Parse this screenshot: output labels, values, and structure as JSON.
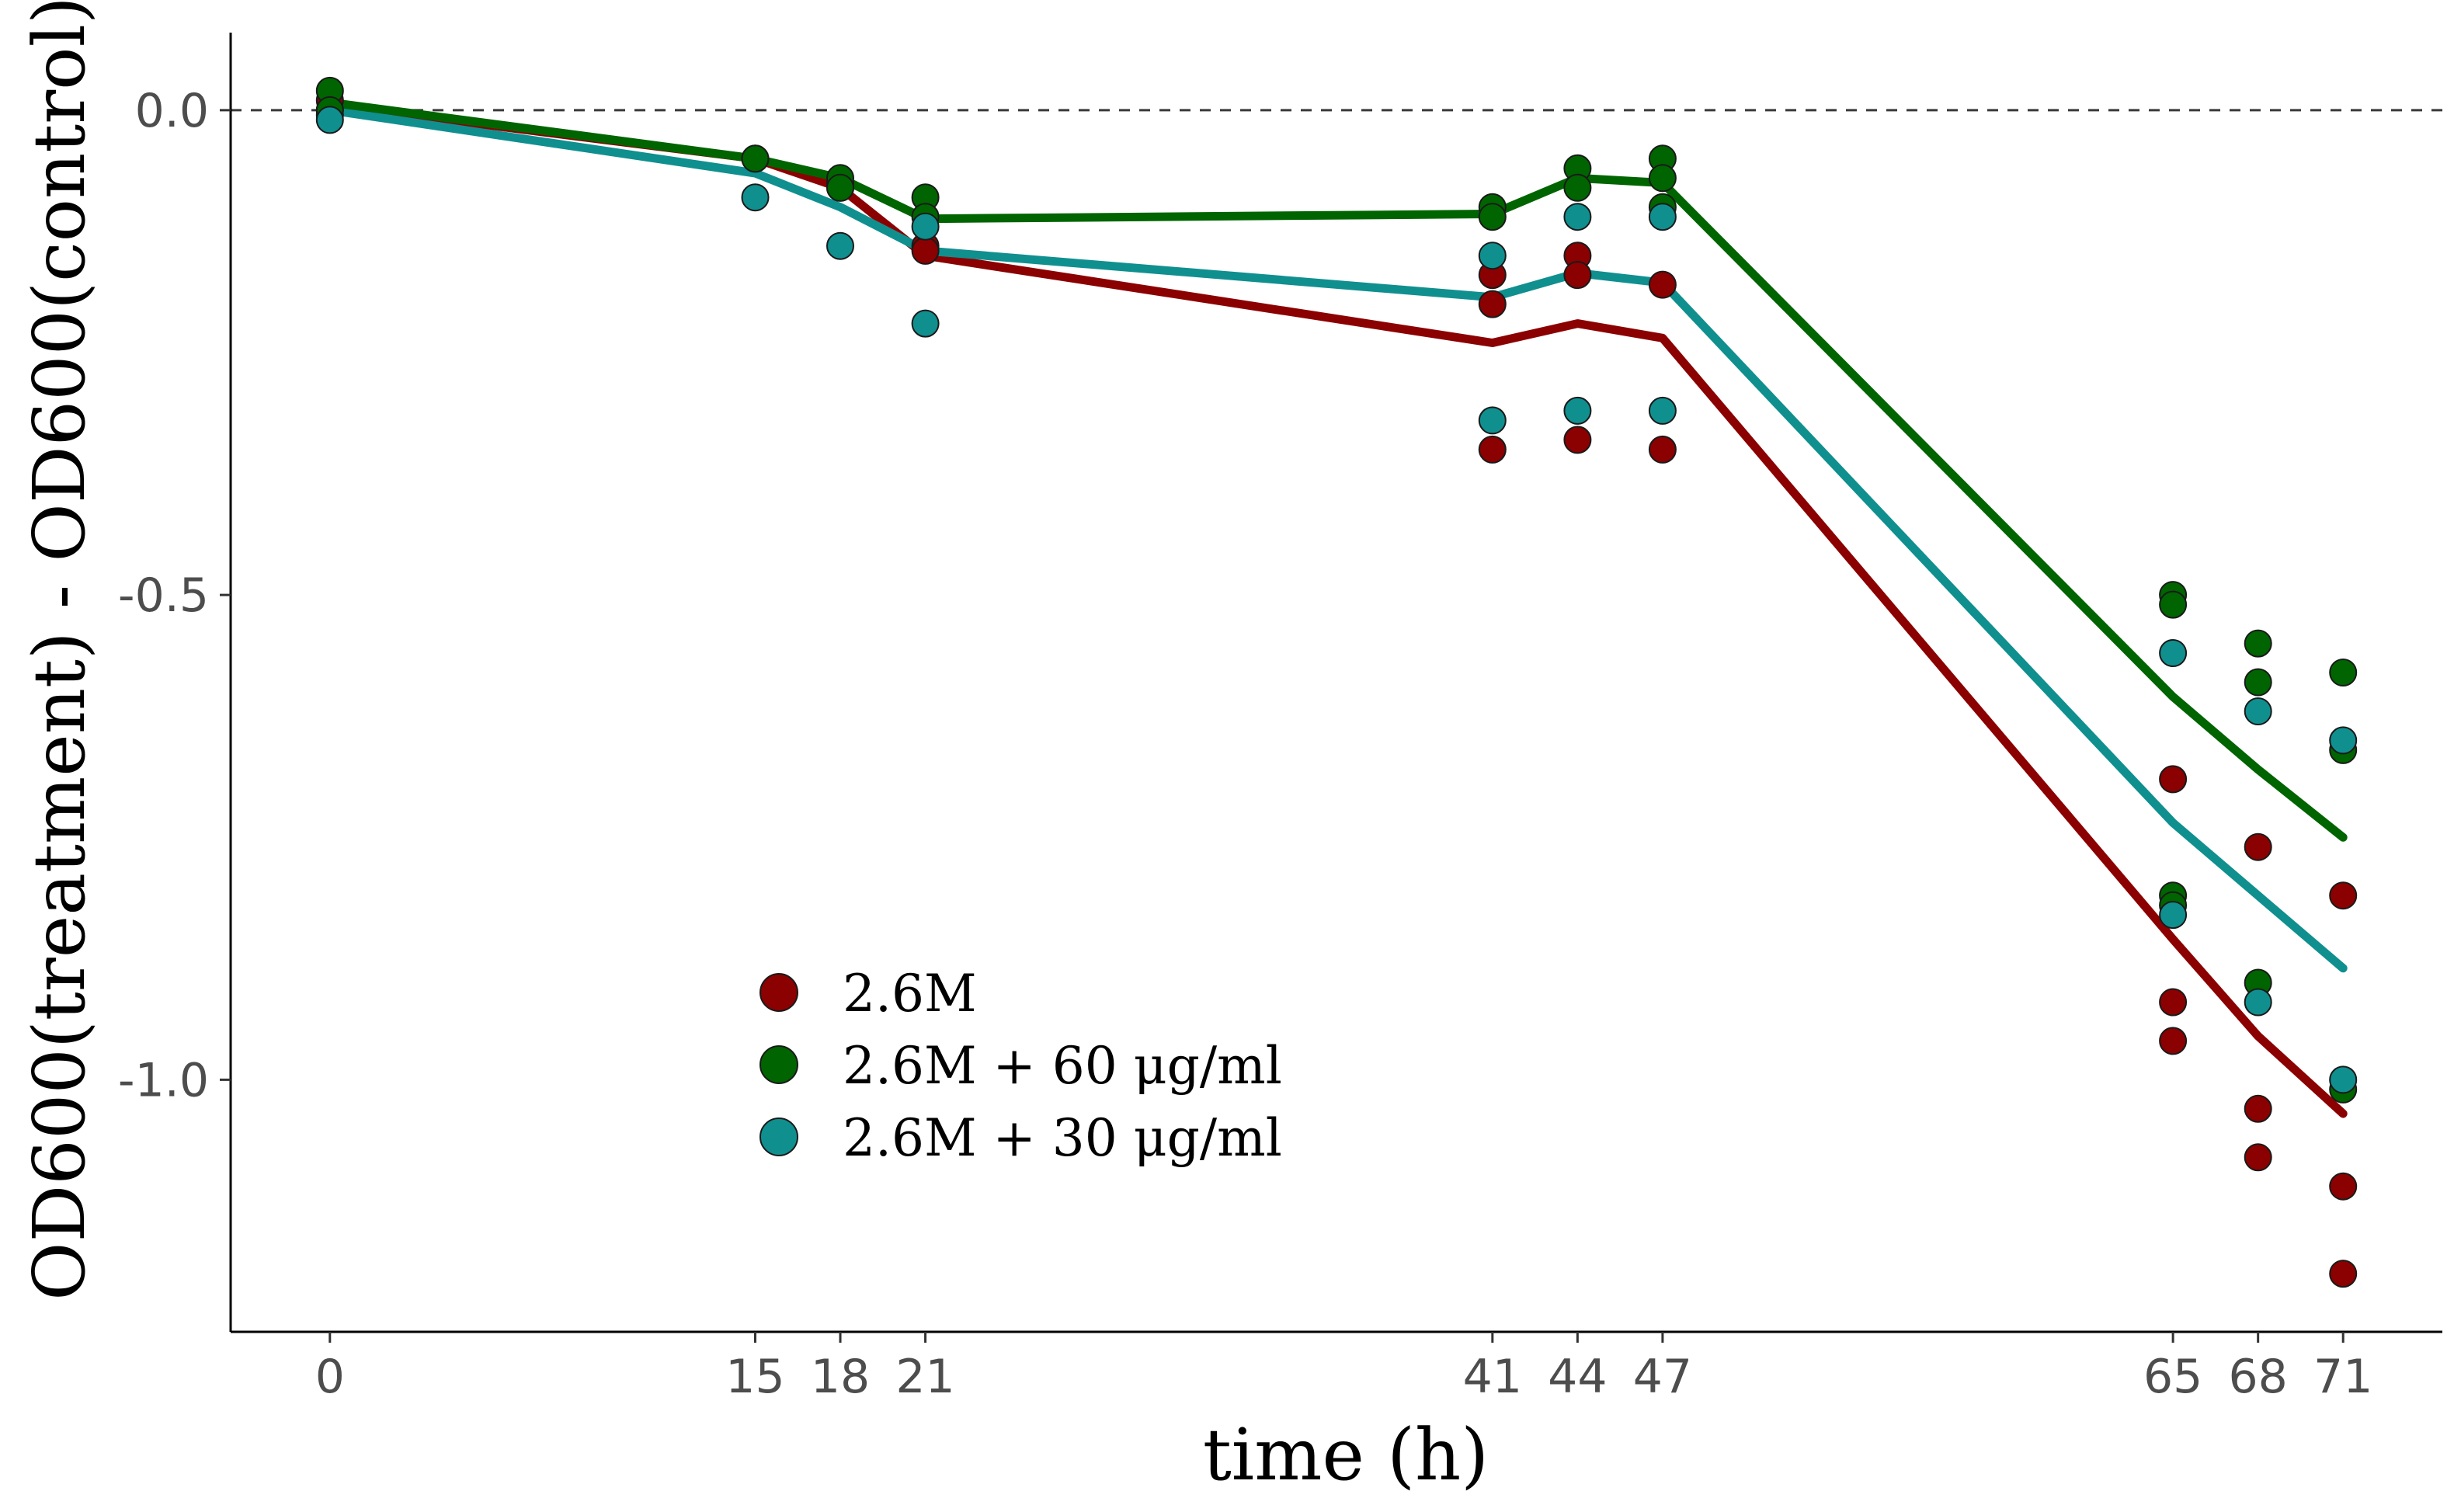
{
  "chart_data": {
    "type": "line",
    "title": "",
    "xlabel": "time (h)",
    "ylabel": "OD600(treatment) - OD600(control)",
    "x_ticks": [
      0,
      15,
      18,
      21,
      41,
      44,
      47,
      65,
      68,
      71
    ],
    "y_ticks": [
      {
        "value": 0.0,
        "label": "0.0"
      },
      {
        "value": -0.5,
        "label": "-0.5"
      },
      {
        "value": -1.0,
        "label": "-1.0"
      }
    ],
    "xlim": [
      -3.5,
      74.5
    ],
    "ylim": [
      -1.26,
      0.08
    ],
    "reference_line_y": 0,
    "grid": false,
    "legend_position": "bottom-left-inside",
    "series": [
      {
        "name": "2.6M",
        "color": "#8b0000",
        "line": {
          "x": [
            0,
            15,
            18,
            21,
            41,
            44,
            47,
            65,
            68,
            71
          ],
          "y": [
            0.005,
            -0.05,
            -0.08,
            -0.15,
            -0.24,
            -0.22,
            -0.235,
            -0.855,
            -0.955,
            -1.035
          ]
        },
        "points": [
          {
            "x": 0,
            "y": 0.01
          },
          {
            "x": 0,
            "y": 0.0
          },
          {
            "x": 0,
            "y": -0.005
          },
          {
            "x": 15,
            "y": -0.05
          },
          {
            "x": 18,
            "y": -0.075
          },
          {
            "x": 18,
            "y": -0.08
          },
          {
            "x": 21,
            "y": -0.14
          },
          {
            "x": 21,
            "y": -0.145
          },
          {
            "x": 41,
            "y": -0.17
          },
          {
            "x": 41,
            "y": -0.2
          },
          {
            "x": 41,
            "y": -0.35
          },
          {
            "x": 44,
            "y": -0.15
          },
          {
            "x": 44,
            "y": -0.17
          },
          {
            "x": 44,
            "y": -0.34
          },
          {
            "x": 47,
            "y": -0.18
          },
          {
            "x": 47,
            "y": -0.35
          },
          {
            "x": 65,
            "y": -0.69
          },
          {
            "x": 65,
            "y": -0.92
          },
          {
            "x": 65,
            "y": -0.96
          },
          {
            "x": 68,
            "y": -0.76
          },
          {
            "x": 68,
            "y": -1.03
          },
          {
            "x": 68,
            "y": -1.08
          },
          {
            "x": 71,
            "y": -0.81
          },
          {
            "x": 71,
            "y": -1.11
          },
          {
            "x": 71,
            "y": -1.2
          }
        ]
      },
      {
        "name": "2.6M + 60 μg/ml",
        "color": "#006400",
        "line": {
          "x": [
            0,
            15,
            18,
            21,
            41,
            44,
            47,
            65,
            68,
            71
          ],
          "y": [
            0.008,
            -0.05,
            -0.07,
            -0.112,
            -0.107,
            -0.07,
            -0.075,
            -0.605,
            -0.68,
            -0.75
          ]
        },
        "points": [
          {
            "x": 0,
            "y": 0.02
          },
          {
            "x": 0,
            "y": 0.0
          },
          {
            "x": 15,
            "y": -0.05
          },
          {
            "x": 18,
            "y": -0.07
          },
          {
            "x": 18,
            "y": -0.08
          },
          {
            "x": 21,
            "y": -0.09
          },
          {
            "x": 21,
            "y": -0.11
          },
          {
            "x": 41,
            "y": -0.1
          },
          {
            "x": 41,
            "y": -0.11
          },
          {
            "x": 44,
            "y": -0.06
          },
          {
            "x": 44,
            "y": -0.08
          },
          {
            "x": 47,
            "y": -0.05
          },
          {
            "x": 47,
            "y": -0.07
          },
          {
            "x": 47,
            "y": -0.1
          },
          {
            "x": 65,
            "y": -0.5
          },
          {
            "x": 65,
            "y": -0.51
          },
          {
            "x": 65,
            "y": -0.81
          },
          {
            "x": 65,
            "y": -0.82
          },
          {
            "x": 68,
            "y": -0.55
          },
          {
            "x": 68,
            "y": -0.59
          },
          {
            "x": 68,
            "y": -0.9
          },
          {
            "x": 71,
            "y": -0.58
          },
          {
            "x": 71,
            "y": -0.66
          },
          {
            "x": 71,
            "y": -1.01
          }
        ]
      },
      {
        "name": "2.6M + 30 μg/ml",
        "color": "#108f8f",
        "line": {
          "x": [
            0,
            15,
            18,
            21,
            41,
            44,
            47,
            65,
            68,
            71
          ],
          "y": [
            0.0,
            -0.065,
            -0.1,
            -0.145,
            -0.193,
            -0.168,
            -0.178,
            -0.735,
            -0.81,
            -0.885
          ]
        },
        "points": [
          {
            "x": 0,
            "y": -0.01
          },
          {
            "x": 15,
            "y": -0.09
          },
          {
            "x": 18,
            "y": -0.14
          },
          {
            "x": 21,
            "y": -0.12
          },
          {
            "x": 21,
            "y": -0.22
          },
          {
            "x": 41,
            "y": -0.15
          },
          {
            "x": 41,
            "y": -0.32
          },
          {
            "x": 44,
            "y": -0.11
          },
          {
            "x": 44,
            "y": -0.31
          },
          {
            "x": 47,
            "y": -0.11
          },
          {
            "x": 47,
            "y": -0.31
          },
          {
            "x": 65,
            "y": -0.56
          },
          {
            "x": 65,
            "y": -0.83
          },
          {
            "x": 68,
            "y": -0.62
          },
          {
            "x": 68,
            "y": -0.92
          },
          {
            "x": 71,
            "y": -0.65
          },
          {
            "x": 71,
            "y": -1.0
          }
        ]
      }
    ]
  }
}
